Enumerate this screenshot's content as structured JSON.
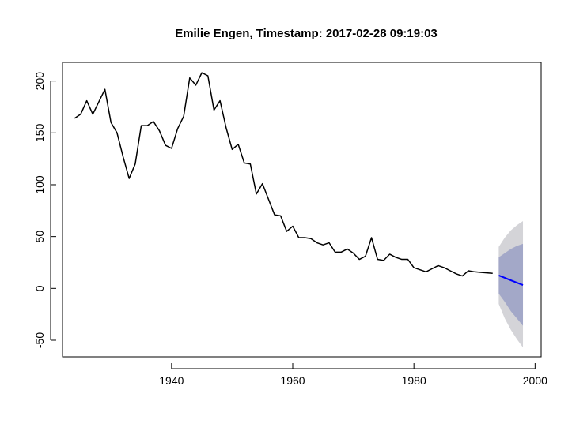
{
  "chart_data": {
    "type": "line",
    "title": "Emilie Engen, Timestamp: 2017-02-28 09:19:03",
    "xlabel": "",
    "ylabel": "",
    "xlim": [
      1922,
      2001
    ],
    "ylim": [
      -66,
      218
    ],
    "x_ticks": [
      1940,
      1960,
      1980,
      2000
    ],
    "y_ticks": [
      -50,
      0,
      50,
      100,
      150,
      200
    ],
    "grid": false,
    "legend": "none",
    "colors": {
      "history": "#000000",
      "forecast": "#0000ff",
      "interval_95": "#d4d4d8",
      "interval_80": "#a3a8c8"
    },
    "series": [
      {
        "role": "history",
        "x": [
          1924,
          1925,
          1926,
          1927,
          1928,
          1929,
          1930,
          1931,
          1932,
          1933,
          1934,
          1935,
          1936,
          1937,
          1938,
          1939,
          1940,
          1941,
          1942,
          1943,
          1944,
          1945,
          1946,
          1947,
          1948,
          1949,
          1950,
          1951,
          1952,
          1953,
          1954,
          1955,
          1956,
          1957,
          1958,
          1959,
          1960,
          1961,
          1962,
          1963,
          1964,
          1965,
          1966,
          1967,
          1968,
          1969,
          1970,
          1971,
          1972,
          1973,
          1974,
          1975,
          1976,
          1977,
          1978,
          1979,
          1980,
          1981,
          1982,
          1983,
          1984,
          1985,
          1986,
          1987,
          1988,
          1989,
          1990,
          1991,
          1992,
          1993
        ],
        "values": [
          164,
          168,
          181,
          168,
          180,
          192,
          160,
          150,
          127,
          106,
          120,
          157,
          157,
          161,
          152,
          138,
          135,
          154,
          166,
          203,
          196,
          208,
          205,
          172,
          181,
          155,
          134,
          139,
          121,
          120,
          91,
          101,
          86,
          71,
          70,
          55,
          60,
          49,
          49,
          48,
          44,
          42,
          44,
          35,
          35,
          38,
          34,
          28,
          31,
          49,
          28,
          27,
          33,
          30,
          28,
          28,
          20,
          18,
          16,
          19,
          22,
          20,
          17,
          14,
          12,
          17,
          16,
          15.5,
          15,
          14.5
        ]
      },
      {
        "role": "forecast",
        "x": [
          1994,
          1995,
          1996,
          1997,
          1998
        ],
        "values": [
          12.5,
          10.2,
          7.8,
          5.5,
          3.2
        ],
        "lower_80": [
          -5,
          -13,
          -22,
          -29,
          -36
        ],
        "upper_80": [
          30,
          34,
          38,
          41,
          43
        ],
        "lower_95": [
          -15,
          -29,
          -40,
          -49,
          -57
        ],
        "upper_95": [
          40,
          49,
          56,
          61,
          65
        ]
      }
    ]
  }
}
